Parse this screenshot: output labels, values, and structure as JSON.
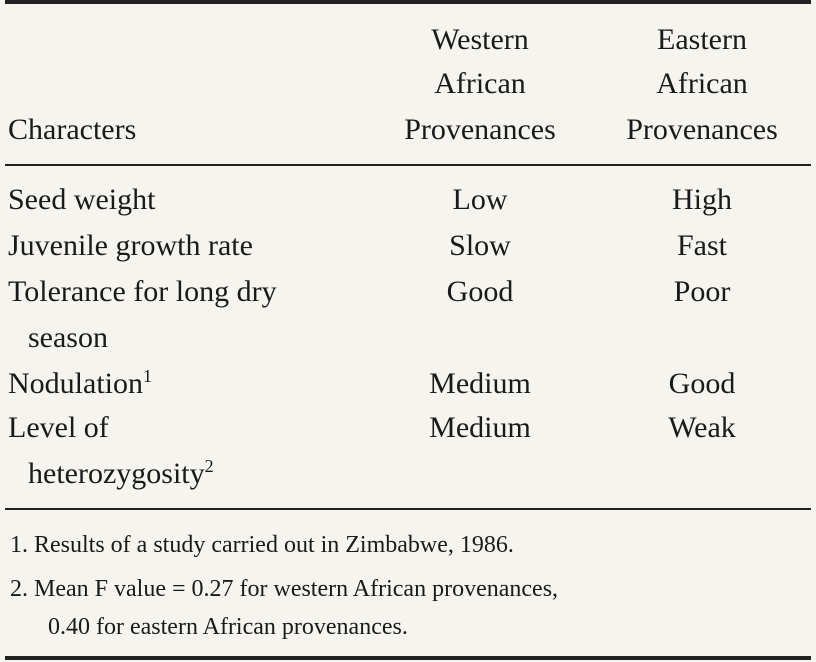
{
  "header": {
    "characters": "Characters",
    "western": [
      "Western",
      "African",
      "Provenances"
    ],
    "eastern": [
      "Eastern",
      "African",
      "Provenances"
    ]
  },
  "rows": [
    {
      "character": "Seed weight",
      "western": "Low",
      "eastern": "High"
    },
    {
      "character": "Juvenile growth rate",
      "western": "Slow",
      "eastern": "Fast"
    },
    {
      "character": "Tolerance for long dry",
      "character_cont": "season",
      "western": "Good",
      "eastern": "Poor"
    },
    {
      "character": "Nodulation",
      "note_marker": "1",
      "western": "Medium",
      "eastern": "Good"
    },
    {
      "character": "Level of",
      "character_cont": "heterozygosity",
      "note_marker": "2",
      "western": "Medium",
      "eastern": "Weak"
    }
  ],
  "footnotes": [
    "1. Results of a study carried out in Zimbabwe, 1986.",
    "2. Mean F value = 0.27 for western African provenances,",
    "0.40 for eastern African provenances."
  ]
}
